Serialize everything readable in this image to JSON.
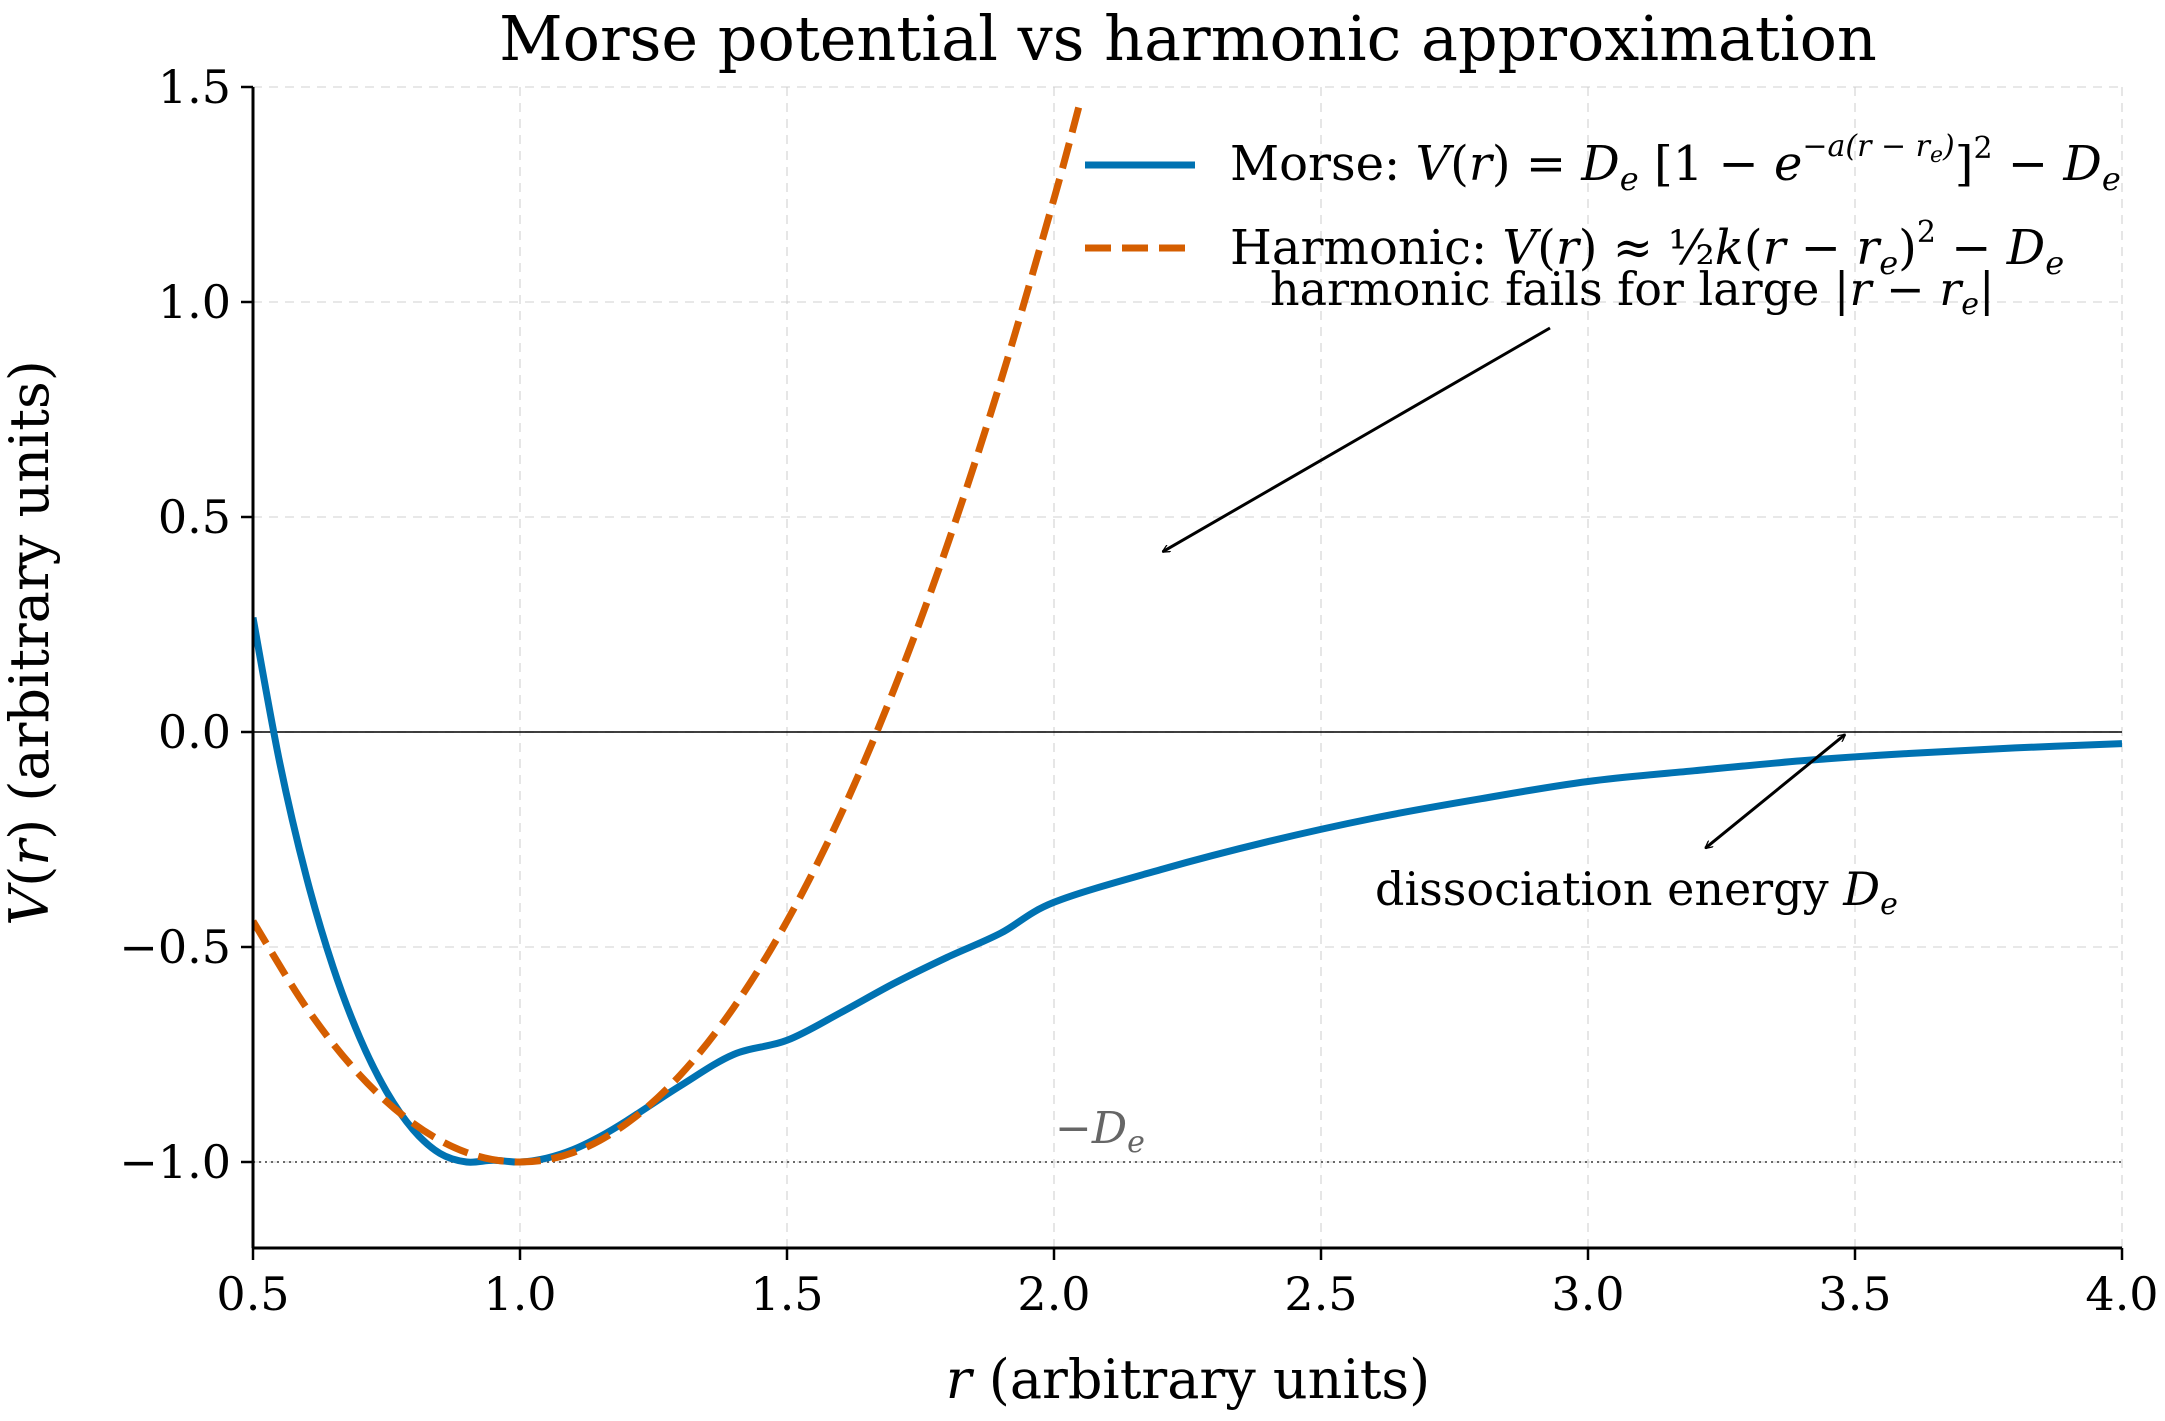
{
  "chart_data": {
    "type": "line",
    "title": "Morse potential vs harmonic approximation",
    "xlabel": "r (arbitrary units)",
    "ylabel": "V(r) (arbitrary units)",
    "xlim": [
      0.5,
      4.0
    ],
    "ylim": [
      -1.2,
      1.5
    ],
    "x_ticks": [
      0.5,
      1.0,
      1.5,
      2.0,
      2.5,
      3.0,
      3.5,
      4.0
    ],
    "x_tick_labels": [
      "0.5",
      "1.0",
      "1.5",
      "2.0",
      "2.5",
      "3.0",
      "3.5",
      "4.0"
    ],
    "y_ticks": [
      -1.0,
      -0.5,
      0.0,
      0.5,
      1.0,
      1.5
    ],
    "y_tick_labels": [
      "−1.0",
      "−0.5",
      "0.0",
      "0.5",
      "1.0",
      "1.5"
    ],
    "grid": true,
    "legend_position": "top-right",
    "colors": {
      "morse": "#0072b2",
      "harmonic": "#d55e00"
    },
    "series": [
      {
        "name": "Morse: V(r) = Dₑ [1 − e^(−a(r − rₑ))]² − Dₑ",
        "style": "solid",
        "x": [
          0.5,
          0.55,
          0.6,
          0.65,
          0.7,
          0.75,
          0.8,
          0.85,
          0.9,
          0.95,
          1.0,
          1.05,
          1.1,
          1.15,
          1.2,
          1.3,
          1.4,
          1.5,
          1.6,
          1.7,
          1.8,
          1.9,
          2.0,
          2.2,
          2.4,
          2.6,
          2.8,
          3.0,
          3.2,
          3.4,
          3.6,
          3.8,
          4.0
        ],
        "y": [
          0.266,
          -0.071,
          -0.337,
          -0.547,
          -0.711,
          -0.836,
          -0.925,
          -0.98,
          -1.0,
          -0.996,
          -1.0,
          -0.991,
          -0.971,
          -0.941,
          -0.904,
          -0.823,
          -0.75,
          -0.717,
          -0.653,
          -0.585,
          -0.524,
          -0.468,
          -0.396,
          -0.32,
          -0.255,
          -0.2,
          -0.155,
          -0.115,
          -0.09,
          -0.067,
          -0.05,
          -0.037,
          -0.027
        ]
      },
      {
        "name": "Harmonic: V(r) ≈ ½k(r − rₑ)² − Dₑ",
        "style": "dashed",
        "x": [
          0.5,
          0.6,
          0.7,
          0.8,
          0.9,
          1.0,
          1.1,
          1.2,
          1.3,
          1.4,
          1.5,
          1.6,
          1.7,
          1.8,
          1.9,
          2.0,
          2.05
        ],
        "y": [
          -0.44,
          -0.641,
          -0.798,
          -0.91,
          -0.978,
          -1.0,
          -0.978,
          -0.91,
          -0.798,
          -0.641,
          -0.44,
          -0.194,
          0.098,
          0.434,
          0.815,
          1.24,
          1.47
        ]
      }
    ],
    "hlines": [
      {
        "y": 0.0,
        "style": "solid"
      },
      {
        "y": -1.0,
        "style": "dotted",
        "label": "−Dₑ",
        "label_x": 2.0
      }
    ],
    "annotations": [
      {
        "text": "harmonic fails for large |r − rₑ|",
        "text_xy": [
          2.4,
          1.0
        ],
        "arrow_to": [
          2.2,
          0.41
        ]
      },
      {
        "text": "dissociation energy Dₑ",
        "text_xy": [
          3.0,
          -0.38
        ],
        "arrow_from": [
          3.22,
          -0.27
        ],
        "arrow_to": [
          3.5,
          -0.02
        ]
      }
    ]
  }
}
